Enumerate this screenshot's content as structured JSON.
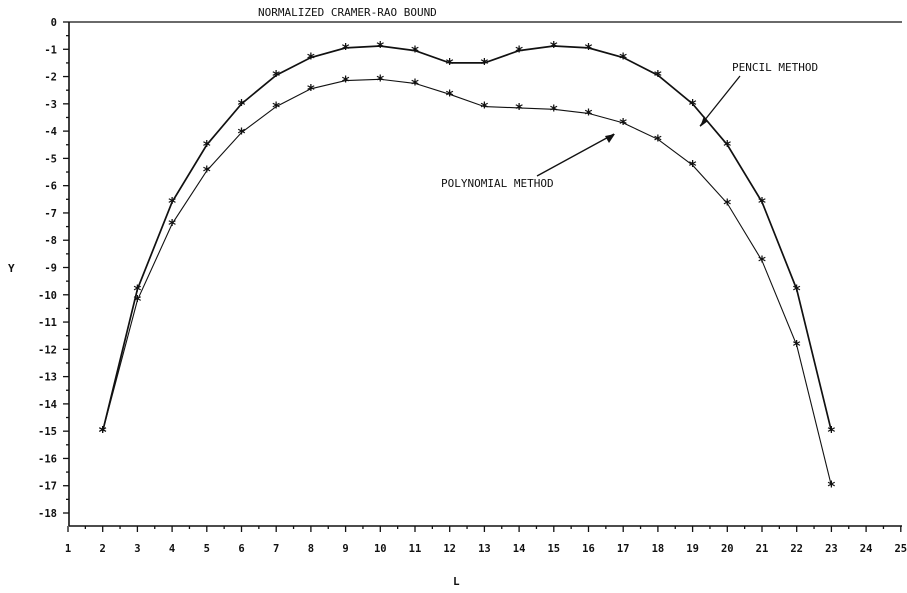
{
  "chart_data": {
    "type": "line",
    "title": "NORMALIZED CRAMER-RAO BOUND",
    "xlabel": "L",
    "ylabel": "Y",
    "xlim": [
      1,
      25
    ],
    "ylim": [
      -18,
      0
    ],
    "xticks": [
      1,
      2,
      3,
      4,
      5,
      6,
      7,
      8,
      9,
      10,
      11,
      12,
      13,
      14,
      15,
      16,
      17,
      18,
      19,
      20,
      21,
      22,
      23,
      24,
      25
    ],
    "yticks": [
      0,
      -1,
      -2,
      -3,
      -4,
      -5,
      -6,
      -7,
      -8,
      -9,
      -10,
      -11,
      -12,
      -13,
      -14,
      -15,
      -16,
      -17,
      -18
    ],
    "grid": false,
    "legend": "none",
    "marker": "*",
    "series": [
      {
        "name": "PENCIL METHOD",
        "x": [
          2,
          3,
          4,
          5,
          6,
          7,
          8,
          9,
          10,
          11,
          12,
          13,
          14,
          15,
          16,
          17,
          18,
          19,
          20,
          21,
          22,
          23
        ],
        "values": [
          -15.0,
          -9.8,
          -6.6,
          -4.5,
          -3.0,
          -1.95,
          -1.3,
          -0.95,
          -0.88,
          -1.05,
          -1.5,
          -1.5,
          -1.05,
          -0.88,
          -0.95,
          -1.3,
          -1.95,
          -3.0,
          -4.5,
          -6.6,
          -9.8,
          -15.0
        ]
      },
      {
        "name": "POLYNOMIAL METHOD",
        "x": [
          2,
          3,
          4,
          5,
          6,
          7,
          8,
          9,
          10,
          11,
          12,
          13,
          14,
          15,
          16,
          17,
          18,
          19,
          20,
          21,
          22,
          23
        ],
        "values": [
          -15.0,
          -10.2,
          -7.4,
          -5.45,
          -4.05,
          -3.1,
          -2.45,
          -2.15,
          -2.1,
          -2.25,
          -2.65,
          -3.1,
          -3.15,
          -3.2,
          -3.35,
          -3.7,
          -4.3,
          -5.25,
          -6.65,
          -8.75,
          -11.85,
          -17.0
        ]
      }
    ],
    "annotations": [
      {
        "text": "PENCIL METHOD",
        "series": 0,
        "point_x": 19
      },
      {
        "text": "POLYNOMIAL METHOD",
        "series": 1,
        "point_x": 17
      }
    ]
  }
}
